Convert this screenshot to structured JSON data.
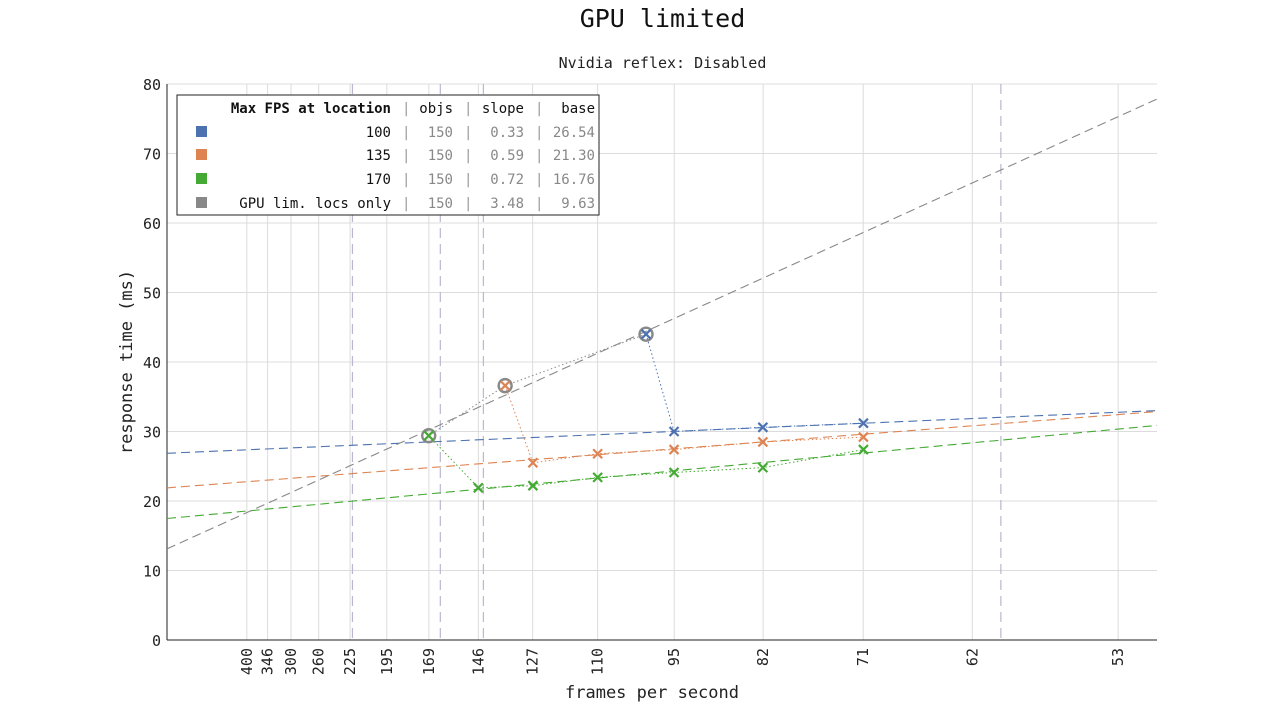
{
  "chart_data": {
    "type": "line",
    "title": "GPU limited",
    "subtitle": "Nvidia reflex: Disabled",
    "xlabel": "frames per second",
    "ylabel": "response time (ms)",
    "x_tick_labels": [
      "400",
      "346",
      "300",
      "260",
      "225",
      "195",
      "169",
      "146",
      "127",
      "110",
      "95",
      "82",
      "71",
      "62",
      "53"
    ],
    "x_tick_frame_times_ms": [
      2.5,
      2.89,
      3.33,
      3.85,
      4.44,
      5.13,
      5.92,
      6.85,
      7.87,
      9.09,
      10.53,
      12.2,
      14.08,
      16.13,
      18.87
    ],
    "x_range_frame_time_ms": [
      1.0,
      19.6
    ],
    "ylim": [
      0,
      80
    ],
    "y_ticks": [
      0,
      10,
      20,
      30,
      40,
      50,
      60,
      70,
      80
    ],
    "grid": true,
    "legend_position": "top-left",
    "legend": {
      "header": {
        "name": "Max FPS at location",
        "objs": "objs",
        "slope": "slope",
        "base": "base"
      },
      "rows": [
        {
          "name": "100",
          "objs": "150",
          "slope": "0.33",
          "base": "26.54",
          "color": "#4c72b0"
        },
        {
          "name": "135",
          "objs": "150",
          "slope": "0.59",
          "base": "21.30",
          "color": "#dd8452"
        },
        {
          "name": "170",
          "objs": "150",
          "slope": "0.72",
          "base": "16.76",
          "color": "#44aa33"
        },
        {
          "name": "GPU lim. locs only",
          "objs": "150",
          "slope": "3.48",
          "base": "9.63",
          "color": "#888888"
        }
      ]
    },
    "vertical_dashed_lines_fps": [
      223,
      163,
      144,
      60
    ],
    "series": [
      {
        "name": "100",
        "color": "#4c72b0",
        "fit": {
          "slope": 0.33,
          "base": 26.54
        },
        "points": [
          {
            "fps": 95,
            "ms": 30.0
          },
          {
            "fps": 82,
            "ms": 30.6
          },
          {
            "fps": 71,
            "ms": 31.2
          }
        ]
      },
      {
        "name": "135",
        "color": "#dd8452",
        "fit": {
          "slope": 0.59,
          "base": 21.3
        },
        "points": [
          {
            "fps": 127,
            "ms": 25.5
          },
          {
            "fps": 110,
            "ms": 26.8
          },
          {
            "fps": 95,
            "ms": 27.4
          },
          {
            "fps": 82,
            "ms": 28.5
          },
          {
            "fps": 71,
            "ms": 29.2
          }
        ]
      },
      {
        "name": "170",
        "color": "#44aa33",
        "fit": {
          "slope": 0.72,
          "base": 16.76
        },
        "points": [
          {
            "fps": 146,
            "ms": 21.9
          },
          {
            "fps": 127,
            "ms": 22.2
          },
          {
            "fps": 110,
            "ms": 23.4
          },
          {
            "fps": 95,
            "ms": 24.1
          },
          {
            "fps": 82,
            "ms": 24.8
          },
          {
            "fps": 71,
            "ms": 27.4
          }
        ]
      },
      {
        "name": "GPU lim. locs only",
        "color": "#888888",
        "fit": {
          "slope": 3.48,
          "base": 9.63
        },
        "points": [
          {
            "fps": 169,
            "ms": 29.4
          },
          {
            "fps": 136,
            "ms": 36.6
          },
          {
            "fps": 100,
            "ms": 44.0
          }
        ]
      }
    ],
    "connectors": [
      {
        "from": {
          "fps": 169,
          "ms": 29.4
        },
        "to": {
          "fps": 146,
          "ms": 21.9
        },
        "color": "#44aa33"
      },
      {
        "from": {
          "fps": 136,
          "ms": 36.6
        },
        "to": {
          "fps": 127,
          "ms": 25.5
        },
        "color": "#dd8452"
      },
      {
        "from": {
          "fps": 100,
          "ms": 44.0
        },
        "to": {
          "fps": 95,
          "ms": 30.0
        },
        "color": "#4c72b0"
      }
    ]
  }
}
